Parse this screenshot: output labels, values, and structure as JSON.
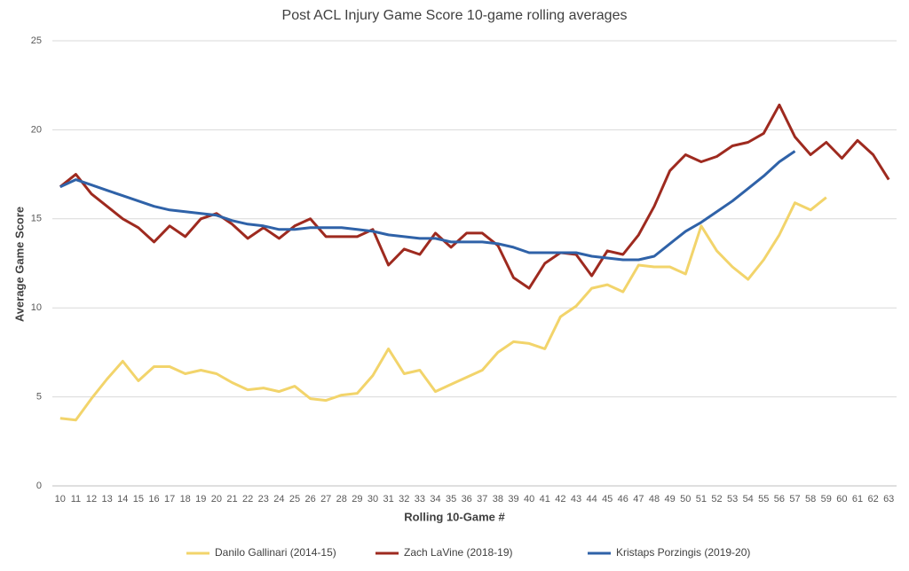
{
  "chart_data": {
    "type": "line",
    "title": "Post ACL Injury Game Score 10-game rolling averages",
    "x_label": "Rolling 10-Game #",
    "y_label": "Average Game Score",
    "categories": [
      10,
      11,
      12,
      13,
      14,
      15,
      16,
      17,
      18,
      19,
      20,
      21,
      22,
      23,
      24,
      25,
      26,
      27,
      28,
      29,
      30,
      31,
      32,
      33,
      34,
      35,
      36,
      37,
      38,
      39,
      40,
      41,
      42,
      43,
      44,
      45,
      46,
      47,
      48,
      49,
      50,
      51,
      52,
      53,
      54,
      55,
      56,
      57,
      58,
      59,
      60,
      61,
      62,
      63
    ],
    "series": [
      {
        "name": "Danilo Gallinari (2014-15)",
        "color": "#f2d46b",
        "values": [
          3.8,
          3.7,
          4.9,
          6.0,
          7.0,
          5.9,
          6.7,
          6.7,
          6.3,
          6.5,
          6.3,
          5.8,
          5.4,
          5.5,
          5.3,
          5.6,
          4.9,
          4.8,
          5.1,
          5.2,
          6.2,
          7.7,
          6.3,
          6.5,
          5.3,
          5.7,
          6.1,
          6.5,
          7.5,
          8.1,
          8.0,
          7.7,
          9.5,
          10.1,
          11.1,
          11.3,
          10.9,
          12.4,
          12.3,
          12.3,
          11.9,
          14.6,
          13.2,
          12.3,
          11.6,
          12.7,
          14.1,
          15.9,
          15.5,
          16.2,
          null,
          null,
          null,
          null
        ]
      },
      {
        "name": "Zach LaVine (2018-19)",
        "color": "#9e2a1f",
        "values": [
          16.8,
          17.5,
          16.4,
          15.7,
          15.0,
          14.5,
          13.7,
          14.6,
          14.0,
          15.0,
          15.3,
          14.7,
          13.9,
          14.5,
          13.9,
          14.6,
          15.0,
          14.0,
          14.0,
          14.0,
          14.4,
          12.4,
          13.3,
          13.0,
          14.2,
          13.4,
          14.2,
          14.2,
          13.5,
          11.7,
          11.1,
          12.5,
          13.1,
          13.0,
          11.8,
          13.2,
          13.0,
          14.1,
          15.7,
          17.7,
          18.6,
          18.2,
          18.5,
          19.1,
          19.3,
          19.8,
          21.4,
          19.6,
          18.6,
          19.3,
          18.4,
          19.4,
          18.6,
          17.2
        ]
      },
      {
        "name": "Kristaps Porzingis (2019-20)",
        "color": "#2f62a8",
        "values": [
          16.8,
          17.2,
          16.9,
          16.6,
          16.3,
          16.0,
          15.7,
          15.5,
          15.4,
          15.3,
          15.2,
          14.9,
          14.7,
          14.6,
          14.4,
          14.4,
          14.5,
          14.5,
          14.5,
          14.4,
          14.3,
          14.1,
          14.0,
          13.9,
          13.9,
          13.7,
          13.7,
          13.7,
          13.6,
          13.4,
          13.1,
          13.1,
          13.1,
          13.1,
          12.9,
          12.8,
          12.7,
          12.7,
          12.9,
          13.6,
          14.3,
          14.8,
          15.4,
          16.0,
          16.7,
          17.4,
          18.2,
          18.8,
          null,
          null,
          null,
          null,
          null,
          null
        ]
      }
    ],
    "ylim": [
      0,
      25
    ],
    "yticks": [
      0,
      5,
      10,
      15,
      20,
      25
    ],
    "grid": true,
    "legend": "bottom"
  }
}
